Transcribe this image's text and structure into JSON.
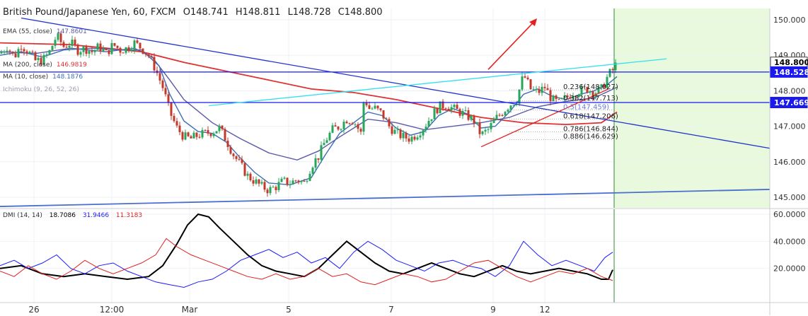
{
  "header": {
    "title": "British Pound/Japanese Yen, 60, FXCM",
    "open": "O148.741",
    "high": "H148.811",
    "low": "L148.728",
    "close": "C148.800"
  },
  "indicators": [
    {
      "label": "EMA (55, close)",
      "value": "147.8601",
      "color": "#5a5aa8"
    },
    {
      "label": "MA (200, close)",
      "value": "146.9819",
      "color": "#e03030"
    },
    {
      "label": "MA (10, close)",
      "value": "148.1876",
      "color": "#3b6fb6"
    },
    {
      "label": "Ichimoku (9, 26, 52, 26)",
      "value": "",
      "color": "#9aa0b0"
    }
  ],
  "dmi": {
    "label": "DMI (14, 14)",
    "adx": "18.7086",
    "plus_di": "31.9466",
    "minus_di": "11.3183",
    "colors": {
      "adx": "#000000",
      "plus_di": "#1a1aff",
      "minus_di": "#e02020"
    }
  },
  "price_axis": {
    "ticks": [
      "150.000",
      "149.000",
      "148.000",
      "147.000",
      "146.000",
      "145.000"
    ],
    "last_price": "148.800",
    "levels": [
      {
        "value": 148.528,
        "label": "148.528"
      },
      {
        "value": 147.669,
        "label": "147.669"
      }
    ]
  },
  "dmi_axis": {
    "ticks": [
      "60.0000",
      "40.0000",
      "20.0000"
    ]
  },
  "time_axis": {
    "ticks": [
      "26",
      "12:00",
      "Mar",
      "5",
      "7",
      "9",
      "12"
    ]
  },
  "fibonacci": [
    {
      "ratio": "0.236",
      "price": "148.027",
      "label": "0.236(148.027)"
    },
    {
      "ratio": "0.382",
      "price": "147.713",
      "label": "0.382(147.713)"
    },
    {
      "ratio": "0.5",
      "price": "147.459",
      "label": "0.5(147.459)"
    },
    {
      "ratio": "0.618",
      "price": "147.206",
      "label": "0.618(147.206)"
    },
    {
      "ratio": "0.786",
      "price": "146.844",
      "label": "0.786(146.844)"
    },
    {
      "ratio": "0.886",
      "price": "146.629",
      "label": "0.886(146.629)"
    }
  ],
  "colors": {
    "up_candle": "#26a65b",
    "down_candle": "#c0392b",
    "resistance_line": "#1a1aee",
    "trend_line_cyan": "#33e0f0",
    "channel_line": "#4a6fd0",
    "arrow": "#e62020",
    "forecast_zone": "#e8f9dd"
  },
  "chart_data": {
    "type": "candlestick",
    "symbol": "British Pound/Japanese Yen",
    "interval": "60",
    "source": "FXCM",
    "ylim": [
      144.8,
      150.2
    ],
    "x_tick_labels": [
      "26",
      "12:00",
      "Mar",
      "5",
      "7",
      "9",
      "12"
    ],
    "close_path": [
      [
        0,
        149.05
      ],
      [
        10,
        149.25
      ],
      [
        20,
        148.95
      ],
      [
        30,
        149.3
      ],
      [
        40,
        149.1
      ],
      [
        50,
        148.85
      ],
      [
        60,
        148.85
      ],
      [
        70,
        149.1
      ],
      [
        80,
        149.55
      ],
      [
        90,
        149.25
      ],
      [
        100,
        149.35
      ],
      [
        110,
        149.15
      ],
      [
        120,
        149.2
      ],
      [
        130,
        149.1
      ],
      [
        140,
        149.25
      ],
      [
        150,
        149.05
      ],
      [
        160,
        149.3
      ],
      [
        170,
        149.15
      ],
      [
        180,
        149.2
      ],
      [
        190,
        149.35
      ],
      [
        200,
        149.2
      ],
      [
        210,
        149.0
      ],
      [
        220,
        148.6
      ],
      [
        230,
        148.1
      ],
      [
        240,
        147.4
      ],
      [
        250,
        146.95
      ],
      [
        260,
        146.7
      ],
      [
        270,
        146.65
      ],
      [
        280,
        146.75
      ],
      [
        290,
        146.8
      ],
      [
        300,
        146.85
      ],
      [
        310,
        146.95
      ],
      [
        320,
        146.6
      ],
      [
        330,
        146.2
      ],
      [
        340,
        145.9
      ],
      [
        350,
        145.6
      ],
      [
        360,
        145.45
      ],
      [
        370,
        145.3
      ],
      [
        380,
        145.2
      ],
      [
        390,
        145.3
      ],
      [
        400,
        145.45
      ],
      [
        410,
        145.4
      ],
      [
        420,
        145.5
      ],
      [
        430,
        145.4
      ],
      [
        440,
        145.9
      ],
      [
        450,
        146.15
      ],
      [
        460,
        146.6
      ],
      [
        470,
        146.9
      ],
      [
        480,
        147.0
      ],
      [
        490,
        147.2
      ],
      [
        500,
        147.15
      ],
      [
        510,
        146.8
      ],
      [
        515,
        147.9
      ],
      [
        520,
        147.5
      ],
      [
        530,
        147.5
      ],
      [
        540,
        147.35
      ],
      [
        550,
        147.0
      ],
      [
        560,
        146.8
      ],
      [
        570,
        146.7
      ],
      [
        580,
        146.65
      ],
      [
        590,
        146.8
      ],
      [
        600,
        147.0
      ],
      [
        610,
        147.3
      ],
      [
        620,
        147.55
      ],
      [
        630,
        147.6
      ],
      [
        640,
        147.5
      ],
      [
        650,
        147.4
      ],
      [
        660,
        147.3
      ],
      [
        670,
        147.15
      ],
      [
        680,
        146.75
      ],
      [
        690,
        146.9
      ],
      [
        700,
        147.2
      ],
      [
        710,
        147.4
      ],
      [
        720,
        147.6
      ],
      [
        730,
        147.75
      ],
      [
        740,
        148.45
      ],
      [
        750,
        148.05
      ],
      [
        760,
        147.95
      ],
      [
        770,
        148.1
      ],
      [
        780,
        147.75
      ],
      [
        790,
        147.65
      ],
      [
        800,
        147.8
      ],
      [
        810,
        147.95
      ],
      [
        820,
        148.0
      ],
      [
        830,
        148.05
      ],
      [
        840,
        147.95
      ],
      [
        850,
        148.05
      ],
      [
        855,
        148.25
      ],
      [
        860,
        148.45
      ],
      [
        867,
        148.6
      ],
      [
        872,
        148.8
      ]
    ],
    "lines": {
      "ema55": [
        [
          0,
          149.1
        ],
        [
          50,
          149.05
        ],
        [
          100,
          149.2
        ],
        [
          150,
          149.1
        ],
        [
          190,
          149.2
        ],
        [
          215,
          148.95
        ],
        [
          240,
          148.3
        ],
        [
          260,
          147.75
        ],
        [
          300,
          147.1
        ],
        [
          340,
          146.65
        ],
        [
          380,
          146.25
        ],
        [
          420,
          146.05
        ],
        [
          450,
          146.3
        ],
        [
          480,
          146.7
        ],
        [
          520,
          147.2
        ],
        [
          560,
          147.1
        ],
        [
          600,
          146.9
        ],
        [
          640,
          147.0
        ],
        [
          680,
          147.1
        ],
        [
          720,
          147.25
        ],
        [
          760,
          147.55
        ],
        [
          800,
          147.7
        ],
        [
          840,
          147.8
        ],
        [
          872,
          148.1
        ]
      ],
      "ma200": [
        [
          0,
          149.35
        ],
        [
          100,
          149.3
        ],
        [
          200,
          149.1
        ],
        [
          260,
          148.8
        ],
        [
          320,
          148.55
        ],
        [
          380,
          148.3
        ],
        [
          440,
          148.05
        ],
        [
          500,
          147.95
        ],
        [
          560,
          147.75
        ],
        [
          620,
          147.5
        ],
        [
          680,
          147.25
        ],
        [
          740,
          147.1
        ],
        [
          800,
          147.05
        ],
        [
          850,
          147.1
        ],
        [
          872,
          147.4
        ]
      ],
      "ma10": [
        [
          0,
          149.0
        ],
        [
          30,
          149.1
        ],
        [
          60,
          148.95
        ],
        [
          90,
          149.15
        ],
        [
          130,
          149.2
        ],
        [
          170,
          149.15
        ],
        [
          200,
          149.15
        ],
        [
          225,
          148.7
        ],
        [
          240,
          147.9
        ],
        [
          260,
          147.15
        ],
        [
          280,
          146.85
        ],
        [
          300,
          146.8
        ],
        [
          320,
          146.55
        ],
        [
          340,
          146.1
        ],
        [
          360,
          145.7
        ],
        [
          380,
          145.4
        ],
        [
          410,
          145.35
        ],
        [
          440,
          145.55
        ],
        [
          460,
          146.2
        ],
        [
          480,
          146.8
        ],
        [
          500,
          147.1
        ],
        [
          520,
          147.4
        ],
        [
          540,
          147.3
        ],
        [
          560,
          146.95
        ],
        [
          580,
          146.75
        ],
        [
          600,
          146.85
        ],
        [
          620,
          147.3
        ],
        [
          640,
          147.5
        ],
        [
          660,
          147.35
        ],
        [
          680,
          146.95
        ],
        [
          700,
          147.0
        ],
        [
          720,
          147.4
        ],
        [
          740,
          147.9
        ],
        [
          760,
          148.05
        ],
        [
          780,
          147.85
        ],
        [
          800,
          147.75
        ],
        [
          820,
          147.9
        ],
        [
          840,
          148.0
        ],
        [
          860,
          148.2
        ],
        [
          872,
          148.4
        ]
      ]
    },
    "dmi_ylim": [
      0,
      62
    ],
    "dmi_series": [
      {
        "name": "ADX",
        "color": "#000000",
        "values": [
          [
            0,
            20
          ],
          [
            30,
            22
          ],
          [
            60,
            16
          ],
          [
            90,
            14
          ],
          [
            120,
            16
          ],
          [
            150,
            14
          ],
          [
            180,
            12
          ],
          [
            210,
            14
          ],
          [
            230,
            22
          ],
          [
            250,
            38
          ],
          [
            265,
            52
          ],
          [
            280,
            60
          ],
          [
            295,
            58
          ],
          [
            310,
            50
          ],
          [
            330,
            40
          ],
          [
            350,
            30
          ],
          [
            370,
            22
          ],
          [
            390,
            18
          ],
          [
            410,
            16
          ],
          [
            430,
            14
          ],
          [
            450,
            20
          ],
          [
            470,
            30
          ],
          [
            490,
            40
          ],
          [
            510,
            32
          ],
          [
            530,
            24
          ],
          [
            550,
            18
          ],
          [
            570,
            16
          ],
          [
            590,
            20
          ],
          [
            610,
            24
          ],
          [
            630,
            20
          ],
          [
            650,
            16
          ],
          [
            670,
            14
          ],
          [
            690,
            18
          ],
          [
            710,
            22
          ],
          [
            730,
            18
          ],
          [
            750,
            16
          ],
          [
            770,
            18
          ],
          [
            790,
            20
          ],
          [
            810,
            18
          ],
          [
            830,
            16
          ],
          [
            850,
            12
          ],
          [
            860,
            12
          ],
          [
            866,
            19
          ]
        ]
      },
      {
        "name": "+DI",
        "color": "#1a1aff",
        "values": [
          [
            0,
            22
          ],
          [
            20,
            26
          ],
          [
            40,
            20
          ],
          [
            60,
            24
          ],
          [
            80,
            30
          ],
          [
            100,
            20
          ],
          [
            120,
            16
          ],
          [
            140,
            22
          ],
          [
            160,
            24
          ],
          [
            180,
            18
          ],
          [
            200,
            14
          ],
          [
            220,
            10
          ],
          [
            240,
            8
          ],
          [
            260,
            6
          ],
          [
            280,
            10
          ],
          [
            300,
            12
          ],
          [
            320,
            18
          ],
          [
            340,
            26
          ],
          [
            360,
            30
          ],
          [
            380,
            34
          ],
          [
            400,
            28
          ],
          [
            420,
            32
          ],
          [
            440,
            24
          ],
          [
            460,
            28
          ],
          [
            480,
            20
          ],
          [
            500,
            32
          ],
          [
            520,
            40
          ],
          [
            540,
            34
          ],
          [
            560,
            26
          ],
          [
            580,
            22
          ],
          [
            600,
            18
          ],
          [
            620,
            24
          ],
          [
            640,
            26
          ],
          [
            660,
            22
          ],
          [
            680,
            20
          ],
          [
            700,
            14
          ],
          [
            720,
            22
          ],
          [
            740,
            40
          ],
          [
            760,
            30
          ],
          [
            780,
            22
          ],
          [
            800,
            26
          ],
          [
            820,
            22
          ],
          [
            840,
            18
          ],
          [
            855,
            28
          ],
          [
            866,
            32
          ]
        ]
      },
      {
        "name": "-DI",
        "color": "#e02020",
        "values": [
          [
            0,
            18
          ],
          [
            20,
            14
          ],
          [
            40,
            22
          ],
          [
            60,
            16
          ],
          [
            80,
            12
          ],
          [
            100,
            18
          ],
          [
            120,
            26
          ],
          [
            140,
            20
          ],
          [
            160,
            16
          ],
          [
            180,
            20
          ],
          [
            200,
            24
          ],
          [
            220,
            30
          ],
          [
            235,
            42
          ],
          [
            250,
            36
          ],
          [
            270,
            30
          ],
          [
            290,
            26
          ],
          [
            310,
            22
          ],
          [
            330,
            18
          ],
          [
            350,
            14
          ],
          [
            370,
            12
          ],
          [
            390,
            16
          ],
          [
            410,
            12
          ],
          [
            430,
            14
          ],
          [
            450,
            20
          ],
          [
            470,
            14
          ],
          [
            490,
            16
          ],
          [
            510,
            10
          ],
          [
            530,
            8
          ],
          [
            550,
            12
          ],
          [
            570,
            16
          ],
          [
            590,
            14
          ],
          [
            610,
            10
          ],
          [
            630,
            12
          ],
          [
            650,
            18
          ],
          [
            670,
            24
          ],
          [
            690,
            26
          ],
          [
            710,
            20
          ],
          [
            730,
            14
          ],
          [
            750,
            10
          ],
          [
            770,
            14
          ],
          [
            790,
            18
          ],
          [
            810,
            16
          ],
          [
            830,
            20
          ],
          [
            850,
            14
          ],
          [
            866,
            11
          ]
        ]
      }
    ]
  }
}
